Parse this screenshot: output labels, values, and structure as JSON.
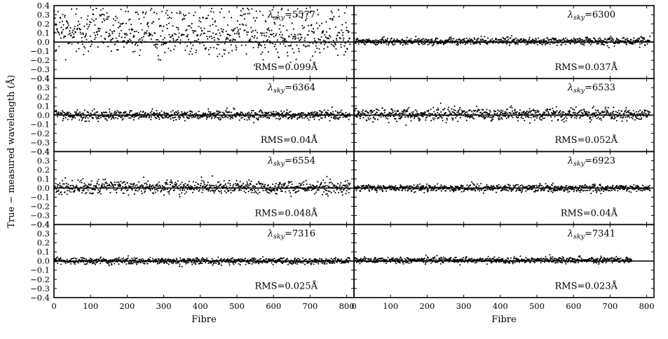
{
  "chart_data": {
    "type": "scatter",
    "layout": "4 rows x 2 columns of panels sharing axes",
    "xlabel": "Fibre",
    "ylabel": "True − measured wavelength (Å)",
    "xlim": [
      0,
      820
    ],
    "ylim": [
      -0.4,
      0.4
    ],
    "x_ticks": [
      "0",
      "100",
      "200",
      "300",
      "400",
      "500",
      "600",
      "700",
      "800"
    ],
    "y_ticks": [
      "−0.4",
      "−0.3",
      "−0.2",
      "−0.1",
      "0.0",
      "0.1",
      "0.2",
      "0.3",
      "0.4"
    ],
    "reference_line_y": 0.0,
    "point_color": "#000000",
    "fibre_count_per_panel": 810,
    "panels": [
      {
        "line_prefix": "λ",
        "line_sub": "sky",
        "line_value": "=5577",
        "rms": "RMS=0.099Å",
        "rms_value_angstrom": 0.099
      },
      {
        "line_prefix": "λ",
        "line_sub": "sky",
        "line_value": "=6300",
        "rms": "RMS=0.037Å",
        "rms_value_angstrom": 0.037
      },
      {
        "line_prefix": "λ",
        "line_sub": "sky",
        "line_value": "=6364",
        "rms": "RMS=0.04Å",
        "rms_value_angstrom": 0.04
      },
      {
        "line_prefix": "λ",
        "line_sub": "sky",
        "line_value": "=6533",
        "rms": "RMS=0.052Å",
        "rms_value_angstrom": 0.052
      },
      {
        "line_prefix": "λ",
        "line_sub": "sky",
        "line_value": "=6554",
        "rms": "RMS=0.048Å",
        "rms_value_angstrom": 0.048
      },
      {
        "line_prefix": "λ",
        "line_sub": "sky",
        "line_value": "=6923",
        "rms": "RMS=0.04Å",
        "rms_value_angstrom": 0.04
      },
      {
        "line_prefix": "λ",
        "line_sub": "sky",
        "line_value": "=7316",
        "rms": "RMS=0.025Å",
        "rms_value_angstrom": 0.025
      },
      {
        "line_prefix": "λ",
        "line_sub": "sky",
        "line_value": "=7341",
        "rms": "RMS=0.023Å",
        "rms_value_angstrom": 0.023
      }
    ]
  }
}
